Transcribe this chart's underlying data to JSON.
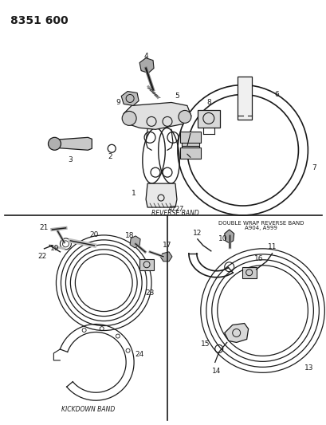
{
  "title_code": "8351 600",
  "bg_color": "#ffffff",
  "line_color": "#1a1a1a",
  "text_color": "#1a1a1a",
  "fig_width": 4.1,
  "fig_height": 5.33,
  "dpi": 100,
  "labels": {
    "top_label1": "A727",
    "top_label2": "REVERSE BAND",
    "bottom_left": "KICKDOWN BAND",
    "bottom_right_line1": "DOUBLE WRAP REVERSE BAND",
    "bottom_right_line2": "A904, A999"
  }
}
